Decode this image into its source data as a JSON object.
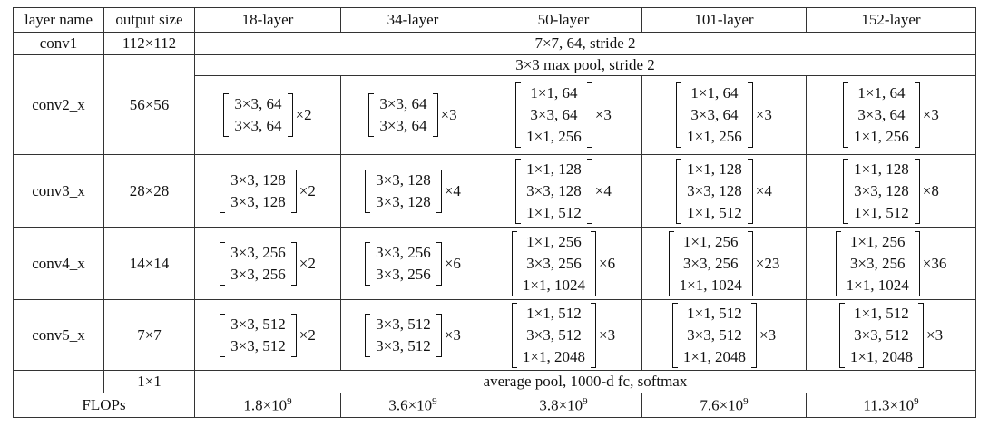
{
  "header": [
    "layer name",
    "output size",
    "18-layer",
    "34-layer",
    "50-layer",
    "101-layer",
    "152-layer"
  ],
  "rows": [
    {
      "layer": "conv1",
      "output": "112×112",
      "shared": "7×7, 64, stride 2"
    },
    {
      "layer": "conv2_x",
      "output": "56×56",
      "shared": "3×3 max pool, stride 2",
      "blocks": [
        {
          "lines": [
            "3×3, 64",
            "3×3, 64"
          ],
          "repeat": "×2"
        },
        {
          "lines": [
            "3×3, 64",
            "3×3, 64"
          ],
          "repeat": "×3"
        },
        {
          "lines": [
            "1×1, 64",
            "3×3, 64",
            "1×1, 256"
          ],
          "repeat": "×3"
        },
        {
          "lines": [
            "1×1, 64",
            "3×3, 64",
            "1×1, 256"
          ],
          "repeat": "×3"
        },
        {
          "lines": [
            "1×1, 64",
            "3×3, 64",
            "1×1, 256"
          ],
          "repeat": "×3"
        }
      ]
    },
    {
      "layer": "conv3_x",
      "output": "28×28",
      "blocks": [
        {
          "lines": [
            "3×3, 128",
            "3×3, 128"
          ],
          "repeat": "×2"
        },
        {
          "lines": [
            "3×3, 128",
            "3×3, 128"
          ],
          "repeat": "×4"
        },
        {
          "lines": [
            "1×1, 128",
            "3×3, 128",
            "1×1, 512"
          ],
          "repeat": "×4"
        },
        {
          "lines": [
            "1×1, 128",
            "3×3, 128",
            "1×1, 512"
          ],
          "repeat": "×4"
        },
        {
          "lines": [
            "1×1, 128",
            "3×3, 128",
            "1×1, 512"
          ],
          "repeat": "×8"
        }
      ]
    },
    {
      "layer": "conv4_x",
      "output": "14×14",
      "blocks": [
        {
          "lines": [
            "3×3, 256",
            "3×3, 256"
          ],
          "repeat": "×2"
        },
        {
          "lines": [
            "3×3, 256",
            "3×3, 256"
          ],
          "repeat": "×6"
        },
        {
          "lines": [
            "1×1, 256",
            "3×3, 256",
            "1×1, 1024"
          ],
          "repeat": "×6"
        },
        {
          "lines": [
            "1×1, 256",
            "3×3, 256",
            "1×1, 1024"
          ],
          "repeat": "×23"
        },
        {
          "lines": [
            "1×1, 256",
            "3×3, 256",
            "1×1, 1024"
          ],
          "repeat": "×36"
        }
      ]
    },
    {
      "layer": "conv5_x",
      "output": "7×7",
      "blocks": [
        {
          "lines": [
            "3×3, 512",
            "3×3, 512"
          ],
          "repeat": "×2"
        },
        {
          "lines": [
            "3×3, 512",
            "3×3, 512"
          ],
          "repeat": "×3"
        },
        {
          "lines": [
            "1×1, 512",
            "3×3, 512",
            "1×1, 2048"
          ],
          "repeat": "×3"
        },
        {
          "lines": [
            "1×1, 512",
            "3×3, 512",
            "1×1, 2048"
          ],
          "repeat": "×3"
        },
        {
          "lines": [
            "1×1, 512",
            "3×3, 512",
            "1×1, 2048"
          ],
          "repeat": "×3"
        }
      ]
    },
    {
      "output": "1×1",
      "shared": "average pool, 1000-d fc, softmax"
    },
    {
      "layer": "FLOPs",
      "flops": [
        {
          "base": "1.8×10",
          "exp": "9"
        },
        {
          "base": "3.6×10",
          "exp": "9"
        },
        {
          "base": "3.8×10",
          "exp": "9"
        },
        {
          "base": "7.6×10",
          "exp": "9"
        },
        {
          "base": "11.3×10",
          "exp": "9"
        }
      ]
    }
  ]
}
